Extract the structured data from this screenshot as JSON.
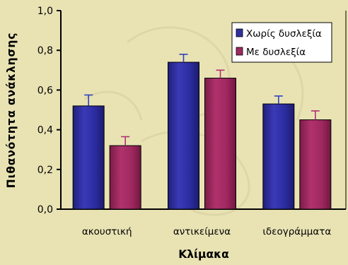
{
  "chart_data": {
    "type": "bar",
    "categories": [
      "ακουστική",
      "αντικείμενα",
      "ιδεογράμματα"
    ],
    "series": [
      {
        "name": "Χωρίς δυσλεξία",
        "values": [
          0.52,
          0.74,
          0.53
        ],
        "errors": [
          0.055,
          0.04,
          0.04
        ],
        "color": "#3030a0"
      },
      {
        "name": "Με δυσλεξία",
        "values": [
          0.32,
          0.66,
          0.45
        ],
        "errors": [
          0.045,
          0.04,
          0.045
        ],
        "color": "#a02860"
      }
    ],
    "xlabel": "Κλίμακα",
    "ylabel": "Πιθανότητα ανάκλησης",
    "ylim": [
      0,
      1.0
    ],
    "yticks": [
      "0,0",
      "0,2",
      "0,4",
      "0,6",
      "0,8",
      "1,0"
    ],
    "grid": false,
    "legend_position": "top-right"
  },
  "colors": {
    "background": "#e9e3b4",
    "watermark": "#c9c190",
    "error_bar_0": "#3040c0",
    "error_bar_1": "#b03070"
  }
}
